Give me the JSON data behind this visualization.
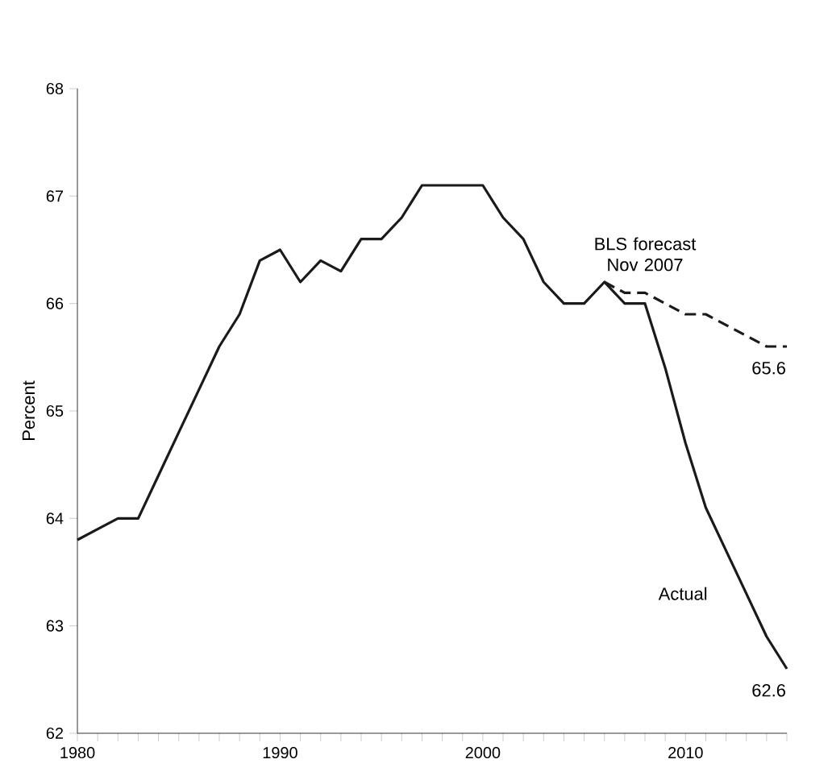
{
  "chart_data": {
    "type": "line",
    "ylabel": "Percent",
    "xlim": [
      1980,
      2015
    ],
    "ylim": [
      62,
      68
    ],
    "xticks": [
      1980,
      {
        "value": 1981,
        "label": null
      },
      {
        "value": 1982,
        "label": null
      },
      {
        "value": 1983,
        "label": null
      },
      {
        "value": 1984,
        "label": null
      },
      {
        "value": 1985,
        "label": null
      },
      {
        "value": 1986,
        "label": null
      },
      {
        "value": 1987,
        "label": null
      },
      {
        "value": 1988,
        "label": null
      },
      {
        "value": 1989,
        "label": null
      },
      1990,
      {
        "value": 1991,
        "label": null
      },
      {
        "value": 1992,
        "label": null
      },
      {
        "value": 1993,
        "label": null
      },
      {
        "value": 1994,
        "label": null
      },
      {
        "value": 1995,
        "label": null
      },
      {
        "value": 1996,
        "label": null
      },
      {
        "value": 1997,
        "label": null
      },
      {
        "value": 1998,
        "label": null
      },
      {
        "value": 1999,
        "label": null
      },
      2000,
      {
        "value": 2001,
        "label": null
      },
      {
        "value": 2002,
        "label": null
      },
      {
        "value": 2003,
        "label": null
      },
      {
        "value": 2004,
        "label": null
      },
      {
        "value": 2005,
        "label": null
      },
      {
        "value": 2006,
        "label": null
      },
      {
        "value": 2007,
        "label": null
      },
      {
        "value": 2008,
        "label": null
      },
      {
        "value": 2009,
        "label": null
      },
      2010,
      {
        "value": 2011,
        "label": null
      },
      {
        "value": 2012,
        "label": null
      },
      {
        "value": 2013,
        "label": null
      },
      {
        "value": 2014,
        "label": null
      },
      {
        "value": 2015,
        "label": null
      }
    ],
    "yticks": [
      62,
      63,
      64,
      65,
      66,
      67,
      68
    ],
    "series": [
      {
        "name": "Actual",
        "color": "#1a1a1a",
        "line_style": "solid",
        "x": [
          1980,
          1981,
          1982,
          1983,
          1984,
          1985,
          1986,
          1987,
          1988,
          1989,
          1990,
          1991,
          1992,
          1993,
          1994,
          1995,
          1996,
          1997,
          1998,
          1999,
          2000,
          2001,
          2002,
          2003,
          2004,
          2005,
          2006,
          2007,
          2008,
          2009,
          2010,
          2011,
          2012,
          2013,
          2014,
          2015
        ],
        "values": [
          63.8,
          63.9,
          64.0,
          64.0,
          64.4,
          64.8,
          65.2,
          65.6,
          65.9,
          66.4,
          66.5,
          66.2,
          66.4,
          66.3,
          66.6,
          66.6,
          66.8,
          67.1,
          67.1,
          67.1,
          67.1,
          66.8,
          66.6,
          66.2,
          66.0,
          66.0,
          66.2,
          66.0,
          66.0,
          65.4,
          64.7,
          64.1,
          63.7,
          63.3,
          62.9,
          62.6
        ]
      },
      {
        "name": "BLS forecast Nov 2007",
        "color": "#1a1a1a",
        "line_style": "dashed",
        "x": [
          2006,
          2007,
          2008,
          2009,
          2010,
          2011,
          2012,
          2013,
          2014,
          2015
        ],
        "values": [
          66.2,
          66.1,
          66.1,
          66.0,
          65.9,
          65.9,
          65.8,
          65.7,
          65.6,
          65.6
        ]
      }
    ],
    "annotations": [
      {
        "text": "65.6",
        "x": 2015,
        "y": 65.6
      },
      {
        "text": "62.6",
        "x": 2015,
        "y": 62.6
      }
    ],
    "grid": false,
    "legend": false,
    "marker": "none"
  }
}
